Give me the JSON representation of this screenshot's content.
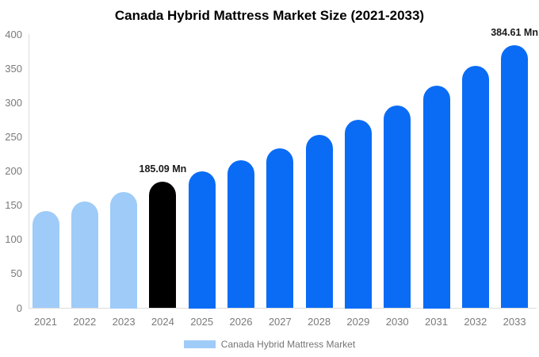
{
  "title": "Canada Hybrid Mattress Market Size (2021-2033)",
  "legend": {
    "label": "Canada Hybrid Mattress Market",
    "swatch_color": "#9fcbf8"
  },
  "colors": {
    "historical_bar": "#9fcbf8",
    "base_year_bar": "#000000",
    "forecast_bar": "#0a6cf5",
    "axis_line": "#dddddd",
    "tick_text": "#7a7a7a",
    "data_label_text": "#1a1a1a"
  },
  "chart_data": {
    "type": "bar",
    "title": "Canada Hybrid Mattress Market Size (2021-2033)",
    "xlabel": "",
    "ylabel": "",
    "categories": [
      "2021",
      "2022",
      "2023",
      "2024",
      "2025",
      "2026",
      "2027",
      "2028",
      "2029",
      "2030",
      "2031",
      "2032",
      "2033"
    ],
    "values": [
      142,
      156,
      170,
      185.09,
      200,
      216,
      234,
      253,
      275,
      296,
      325,
      354,
      384.61
    ],
    "bar_colors": [
      "#9fcbf8",
      "#9fcbf8",
      "#9fcbf8",
      "#000000",
      "#0a6cf5",
      "#0a6cf5",
      "#0a6cf5",
      "#0a6cf5",
      "#0a6cf5",
      "#0a6cf5",
      "#0a6cf5",
      "#0a6cf5",
      "#0a6cf5"
    ],
    "annotations": [
      {
        "category": "2024",
        "text": "185.09 Mn"
      },
      {
        "category": "2033",
        "text": "384.61 Mn"
      }
    ],
    "ylim": [
      0,
      400
    ],
    "yticks": [
      0,
      50,
      100,
      150,
      200,
      250,
      300,
      350,
      400
    ],
    "grid": false,
    "legend_position": "bottom",
    "legend_entries": [
      "Canada Hybrid Mattress Market"
    ]
  }
}
